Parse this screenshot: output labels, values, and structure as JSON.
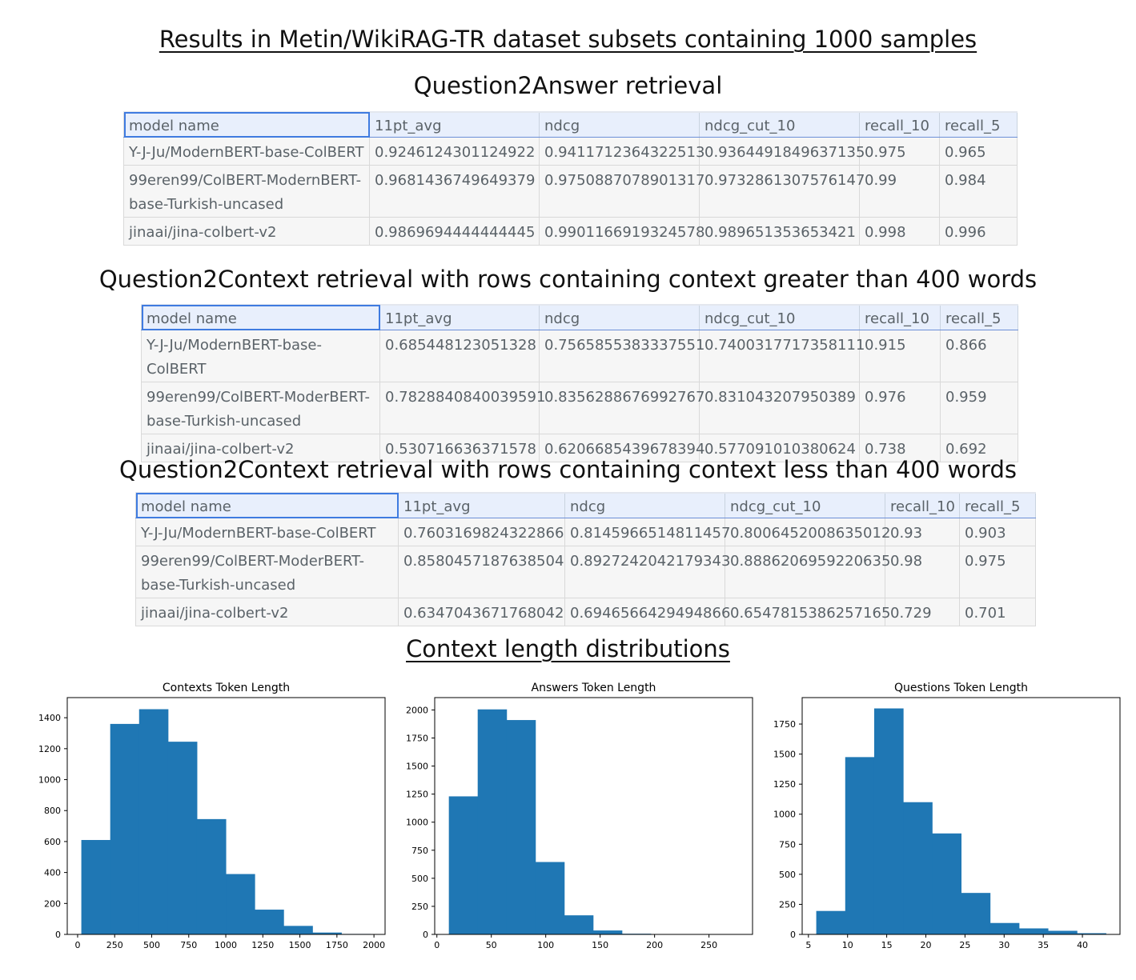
{
  "page": {
    "main_title": "Results in Metin/WikiRAG-TR dataset subsets containing 1000 samples",
    "dist_title": "Context length distributions"
  },
  "tables": [
    {
      "title": "Question2Answer retrieval",
      "columns": [
        "model name",
        "11pt_avg",
        "ndcg",
        "ndcg_cut_10",
        "recall_10",
        "recall_5"
      ],
      "rows": [
        [
          "Y-J-Ju/ModernBERT-base-ColBERT",
          "0.9246124301124922",
          "0.9411712364322513",
          "0.9364491849637135",
          "0.975",
          "0.965"
        ],
        [
          "99eren99/ColBERT-ModernBERT-base-Turkish-uncased",
          "0.9681436749649379",
          "0.9750887078901317",
          "0.9732861307576147",
          "0.99",
          "0.984"
        ],
        [
          "jinaai/jina-colbert-v2",
          "0.9869694444444445",
          "0.9901166919324578",
          "0.989651353653421",
          "0.998",
          "0.996"
        ]
      ]
    },
    {
      "title": "Question2Context retrieval with rows containing context greater than 400 words",
      "columns": [
        "model name",
        "11pt_avg",
        "ndcg",
        "ndcg_cut_10",
        "recall_10",
        "recall_5"
      ],
      "rows": [
        [
          "Y-J-Ju/ModernBERT-base-ColBERT",
          "0.685448123051328",
          "0.7565855383337551",
          "0.7400317717358111",
          "0.915",
          "0.866"
        ],
        [
          "99eren99/ColBERT-ModerBERT-base-Turkish-uncased",
          "0.7828840840039591",
          "0.8356288676992767",
          "0.831043207950389",
          "0.976",
          "0.959"
        ],
        [
          "jinaai/jina-colbert-v2",
          "0.530716636371578",
          "0.6206685439678394",
          "0.577091010380624",
          "0.738",
          "0.692"
        ]
      ]
    },
    {
      "title": "Question2Context retrieval with rows containing context less than 400 words",
      "columns": [
        "model name",
        "11pt_avg",
        "ndcg",
        "ndcg_cut_10",
        "recall_10",
        "recall_5"
      ],
      "rows": [
        [
          "Y-J-Ju/ModernBERT-base-ColBERT",
          "0.7603169824322866",
          "0.8145966514811457",
          "0.8006452008635012",
          "0.93",
          "0.903"
        ],
        [
          "99eren99/ColBERT-ModerBERT-base-Turkish-uncased",
          "0.8580457187638504",
          "0.8927242042179343",
          "0.8886206959220635",
          "0.98",
          "0.975"
        ],
        [
          "jinaai/jina-colbert-v2",
          "0.6347043671768042",
          "0.6946566429494866",
          "0.6547815386257165",
          "0.729",
          "0.701"
        ]
      ]
    }
  ],
  "chart_data": [
    {
      "type": "bar",
      "title": "Contexts Token Length",
      "color": "#1f77b4",
      "bin_edges": [
        25,
        220,
        415,
        610,
        805,
        1000,
        1195,
        1390,
        1585,
        1780,
        1975
      ],
      "values": [
        610,
        1360,
        1455,
        1245,
        745,
        390,
        160,
        55,
        12,
        3
      ],
      "xlim": [
        -70,
        2075
      ],
      "ylim": [
        0,
        1530
      ],
      "xticks": [
        0,
        250,
        500,
        750,
        1000,
        1250,
        1500,
        1750,
        2000
      ],
      "yticks": [
        0,
        200,
        400,
        600,
        800,
        1000,
        1200,
        1400
      ]
    },
    {
      "type": "bar",
      "title": "Answers Token Length",
      "color": "#1f77b4",
      "bin_edges": [
        11,
        37.5,
        64,
        90.5,
        117,
        143.5,
        170,
        196.5,
        223,
        249.5,
        276
      ],
      "values": [
        1230,
        2005,
        1910,
        645,
        170,
        35,
        6,
        2,
        1,
        1
      ],
      "xlim": [
        -2,
        290
      ],
      "ylim": [
        0,
        2110
      ],
      "xticks": [
        0,
        50,
        100,
        150,
        200,
        250
      ],
      "yticks": [
        0,
        250,
        500,
        750,
        1000,
        1250,
        1500,
        1750,
        2000
      ]
    },
    {
      "type": "bar",
      "title": "Questions Token Length",
      "color": "#1f77b4",
      "bin_edges": [
        6,
        9.7,
        13.4,
        17.1,
        20.8,
        24.5,
        28.2,
        31.9,
        35.6,
        39.3,
        43
      ],
      "values": [
        195,
        1475,
        1880,
        1100,
        840,
        345,
        95,
        50,
        30,
        10
      ],
      "xlim": [
        4.2,
        44.8
      ],
      "ylim": [
        0,
        1970
      ],
      "xticks": [
        5,
        10,
        15,
        20,
        25,
        30,
        35,
        40
      ],
      "yticks": [
        0,
        250,
        500,
        750,
        1000,
        1250,
        1500,
        1750
      ]
    }
  ]
}
